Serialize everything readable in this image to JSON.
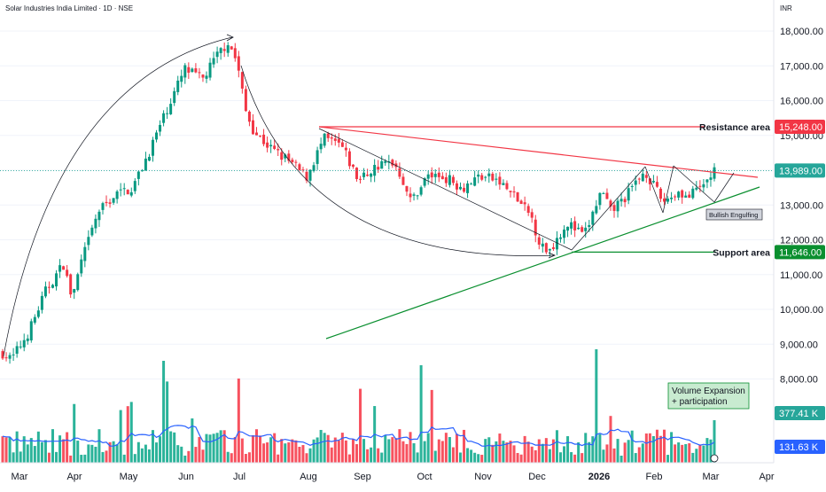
{
  "header": {
    "title": "Solar Industries India Limited · 1D · NSE",
    "currency": "INR"
  },
  "colors": {
    "up": "#089981",
    "down": "#f23645",
    "resistance": "#f23645",
    "support": "#0a8f2f",
    "volume_ma": "#2962ff",
    "price_line": "#26a69a"
  },
  "chart_data": {
    "type": "candlestick",
    "x_ticks": [
      "Mar",
      "Apr",
      "May",
      "Jun",
      "Jul",
      "Aug",
      "Sep",
      "Oct",
      "Nov",
      "Dec",
      "2026",
      "Feb",
      "Mar",
      "Apr"
    ],
    "y_ticks": [
      "18,000.00",
      "17,000.00",
      "16,000.00",
      "15,000.00",
      "14,000.00",
      "13,000.00",
      "12,000.00",
      "11,000.00",
      "10,000.00",
      "9,000.00",
      "8,000.00"
    ],
    "ylim": [
      7700,
      18500
    ],
    "price_path": [
      [
        0,
        8750
      ],
      [
        1,
        8550
      ],
      [
        3,
        9350
      ],
      [
        5,
        10550
      ],
      [
        7,
        11300
      ],
      [
        8,
        10300
      ],
      [
        9,
        11300
      ],
      [
        11,
        12800
      ],
      [
        13,
        13300
      ],
      [
        15,
        13500
      ],
      [
        17,
        14600
      ],
      [
        19,
        15800
      ],
      [
        21,
        16900
      ],
      [
        23,
        16600
      ],
      [
        25,
        17400
      ],
      [
        26,
        17700
      ],
      [
        27,
        17100
      ],
      [
        28,
        15700
      ],
      [
        29,
        15100
      ],
      [
        31,
        14600
      ],
      [
        33,
        14250
      ],
      [
        35,
        13800
      ],
      [
        37,
        14900
      ],
      [
        39,
        14700
      ],
      [
        41,
        13700
      ],
      [
        43,
        14100
      ],
      [
        45,
        14250
      ],
      [
        46,
        13800
      ],
      [
        47,
        13100
      ],
      [
        49,
        13850
      ],
      [
        51,
        13800
      ],
      [
        53,
        13500
      ],
      [
        55,
        13850
      ],
      [
        57,
        13700
      ],
      [
        59,
        13250
      ],
      [
        61,
        12600
      ],
      [
        62,
        11800
      ],
      [
        63,
        11700
      ],
      [
        65,
        12500
      ],
      [
        67,
        12100
      ],
      [
        69,
        13400
      ],
      [
        70,
        12800
      ],
      [
        72,
        13300
      ],
      [
        74,
        14000
      ],
      [
        76,
        13100
      ],
      [
        78,
        13400
      ],
      [
        79,
        13200
      ],
      [
        81,
        13650
      ],
      [
        82,
        13989
      ]
    ],
    "last_price": "13,989.00",
    "volume_values": [
      [
        "377.41 K",
        "377.41"
      ],
      [
        "131.63 K",
        "131.63"
      ]
    ],
    "annotations": {
      "resistance": {
        "label": "Resistance area",
        "value": "15,248.00"
      },
      "support": {
        "label": "Support area",
        "value": "11,646.00"
      },
      "pattern": "Bullish Engulfing",
      "volume_note": [
        "Volume Expansion",
        "+ participation"
      ]
    }
  }
}
